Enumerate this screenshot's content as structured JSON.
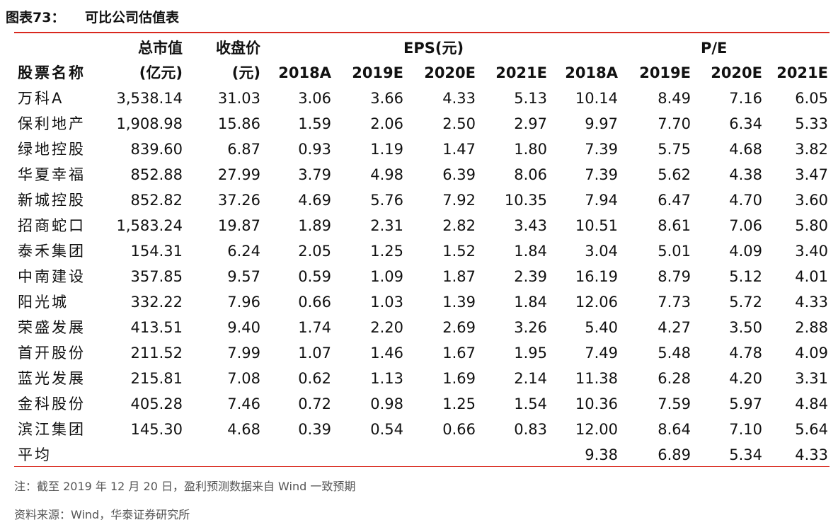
{
  "header": {
    "label": "图表73：",
    "title": "可比公司估值表"
  },
  "table": {
    "columns_top": {
      "market_cap": "总市值",
      "close": "收盘价",
      "eps": "EPS(元)",
      "pe": "P/E"
    },
    "columns_bottom": {
      "name": "股票名称",
      "market_cap": "(亿元)",
      "close": "(元)",
      "eps_years": [
        "2018A",
        "2019E",
        "2020E",
        "2021E"
      ],
      "pe_years": [
        "2018A",
        "2019E",
        "2020E",
        "2021E"
      ]
    },
    "rows": [
      {
        "name": "万科A",
        "market_cap": "3,538.14",
        "close": "31.03",
        "eps": [
          "3.06",
          "3.66",
          "4.33",
          "5.13"
        ],
        "pe": [
          "10.14",
          "8.49",
          "7.16",
          "6.05"
        ]
      },
      {
        "name": "保利地产",
        "market_cap": "1,908.98",
        "close": "15.86",
        "eps": [
          "1.59",
          "2.06",
          "2.50",
          "2.97"
        ],
        "pe": [
          "9.97",
          "7.70",
          "6.34",
          "5.33"
        ]
      },
      {
        "name": "绿地控股",
        "market_cap": "839.60",
        "close": "6.87",
        "eps": [
          "0.93",
          "1.19",
          "1.47",
          "1.80"
        ],
        "pe": [
          "7.39",
          "5.75",
          "4.68",
          "3.82"
        ]
      },
      {
        "name": "华夏幸福",
        "market_cap": "852.88",
        "close": "27.99",
        "eps": [
          "3.79",
          "4.98",
          "6.39",
          "8.06"
        ],
        "pe": [
          "7.39",
          "5.62",
          "4.38",
          "3.47"
        ]
      },
      {
        "name": "新城控股",
        "market_cap": "852.82",
        "close": "37.26",
        "eps": [
          "4.69",
          "5.76",
          "7.92",
          "10.35"
        ],
        "pe": [
          "7.94",
          "6.47",
          "4.70",
          "3.60"
        ]
      },
      {
        "name": "招商蛇口",
        "market_cap": "1,583.24",
        "close": "19.87",
        "eps": [
          "1.89",
          "2.31",
          "2.82",
          "3.43"
        ],
        "pe": [
          "10.51",
          "8.61",
          "7.06",
          "5.80"
        ]
      },
      {
        "name": "泰禾集团",
        "market_cap": "154.31",
        "close": "6.24",
        "eps": [
          "2.05",
          "1.25",
          "1.52",
          "1.84"
        ],
        "pe": [
          "3.04",
          "5.01",
          "4.09",
          "3.40"
        ]
      },
      {
        "name": "中南建设",
        "market_cap": "357.85",
        "close": "9.57",
        "eps": [
          "0.59",
          "1.09",
          "1.87",
          "2.39"
        ],
        "pe": [
          "16.19",
          "8.79",
          "5.12",
          "4.01"
        ]
      },
      {
        "name": "阳光城",
        "market_cap": "332.22",
        "close": "7.96",
        "eps": [
          "0.66",
          "1.03",
          "1.39",
          "1.84"
        ],
        "pe": [
          "12.06",
          "7.73",
          "5.72",
          "4.33"
        ]
      },
      {
        "name": "荣盛发展",
        "market_cap": "413.51",
        "close": "9.40",
        "eps": [
          "1.74",
          "2.20",
          "2.69",
          "3.26"
        ],
        "pe": [
          "5.40",
          "4.27",
          "3.50",
          "2.88"
        ]
      },
      {
        "name": "首开股份",
        "market_cap": "211.52",
        "close": "7.99",
        "eps": [
          "1.07",
          "1.46",
          "1.67",
          "1.95"
        ],
        "pe": [
          "7.49",
          "5.48",
          "4.78",
          "4.09"
        ]
      },
      {
        "name": "蓝光发展",
        "market_cap": "215.81",
        "close": "7.08",
        "eps": [
          "0.62",
          "1.13",
          "1.69",
          "2.14"
        ],
        "pe": [
          "11.38",
          "6.28",
          "4.20",
          "3.31"
        ]
      },
      {
        "name": "金科股份",
        "market_cap": "405.28",
        "close": "7.46",
        "eps": [
          "0.72",
          "0.98",
          "1.25",
          "1.54"
        ],
        "pe": [
          "10.36",
          "7.59",
          "5.97",
          "4.84"
        ]
      },
      {
        "name": "滨江集团",
        "market_cap": "145.30",
        "close": "4.68",
        "eps": [
          "0.39",
          "0.54",
          "0.66",
          "0.83"
        ],
        "pe": [
          "12.00",
          "8.64",
          "7.10",
          "5.64"
        ]
      }
    ],
    "average": {
      "name": "平均",
      "pe": [
        "9.38",
        "6.89",
        "5.34",
        "4.33"
      ]
    }
  },
  "footer": {
    "note": "注：截至 2019 年 12 月 20 日，盈利预测数据来自 Wind 一致预期",
    "source": "资料来源：Wind，华泰证券研究所"
  }
}
